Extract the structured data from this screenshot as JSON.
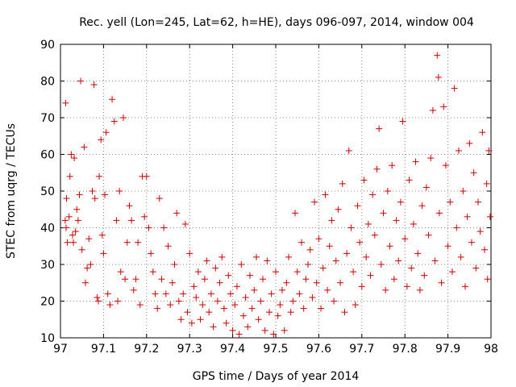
{
  "chart_data": {
    "type": "scatter",
    "title": "Rec. yell (Lon=245, Lat=62, h=HE), days 096-097, 2014, window 004",
    "xlabel": "GPS time / Days of year 2014",
    "ylabel": "STEC from uqrg / TECUs",
    "xlim": [
      97,
      98
    ],
    "ylim": [
      10,
      90
    ],
    "x_ticks": [
      "97",
      "97.1",
      "97.2",
      "97.3",
      "97.4",
      "97.5",
      "97.6",
      "97.7",
      "97.8",
      "97.9",
      "98"
    ],
    "y_ticks": [
      "10",
      "20",
      "30",
      "40",
      "50",
      "60",
      "70",
      "80",
      "90"
    ],
    "grid": true,
    "marker": "plus",
    "color": "#cc0000",
    "series": [
      {
        "points": [
          [
            97.012,
            74
          ],
          [
            97.014,
            48
          ],
          [
            97.011,
            42
          ],
          [
            97.013,
            40
          ],
          [
            97.016,
            36
          ],
          [
            97.02,
            43
          ],
          [
            97.022,
            54
          ],
          [
            97.025,
            60
          ],
          [
            97.028,
            38
          ],
          [
            97.03,
            36
          ],
          [
            97.032,
            59
          ],
          [
            97.035,
            39
          ],
          [
            97.038,
            45
          ],
          [
            97.041,
            42
          ],
          [
            97.044,
            49
          ],
          [
            97.047,
            80
          ],
          [
            97.05,
            34
          ],
          [
            97.055,
            62
          ],
          [
            97.058,
            25
          ],
          [
            97.062,
            29
          ],
          [
            97.066,
            37
          ],
          [
            97.07,
            30
          ],
          [
            97.074,
            50
          ],
          [
            97.078,
            79
          ],
          [
            97.08,
            48
          ],
          [
            97.085,
            21
          ],
          [
            97.088,
            20
          ],
          [
            97.09,
            54
          ],
          [
            97.094,
            64
          ],
          [
            97.097,
            38
          ],
          [
            97.1,
            33
          ],
          [
            97.103,
            49
          ],
          [
            97.106,
            66
          ],
          [
            97.11,
            22
          ],
          [
            97.115,
            19
          ],
          [
            97.12,
            75
          ],
          [
            97.125,
            69
          ],
          [
            97.13,
            42
          ],
          [
            97.133,
            20
          ],
          [
            97.137,
            50
          ],
          [
            97.14,
            28
          ],
          [
            97.146,
            70
          ],
          [
            97.15,
            26
          ],
          [
            97.155,
            36
          ],
          [
            97.16,
            46
          ],
          [
            97.165,
            42
          ],
          [
            97.17,
            23
          ],
          [
            97.175,
            26
          ],
          [
            97.18,
            36
          ],
          [
            97.185,
            19
          ],
          [
            97.19,
            54
          ],
          [
            97.195,
            43
          ],
          [
            97.2,
            54
          ],
          [
            97.205,
            40
          ],
          [
            97.21,
            33
          ],
          [
            97.215,
            28
          ],
          [
            97.22,
            22
          ],
          [
            97.225,
            18
          ],
          [
            97.23,
            48
          ],
          [
            97.235,
            26
          ],
          [
            97.24,
            40
          ],
          [
            97.245,
            22
          ],
          [
            97.25,
            35
          ],
          [
            97.255,
            19
          ],
          [
            97.26,
            25
          ],
          [
            97.265,
            30
          ],
          [
            97.27,
            44
          ],
          [
            97.275,
            20
          ],
          [
            97.28,
            15
          ],
          [
            97.285,
            22
          ],
          [
            97.29,
            41
          ],
          [
            97.295,
            17
          ],
          [
            97.3,
            33
          ],
          [
            97.305,
            14
          ],
          [
            97.31,
            24
          ],
          [
            97.315,
            21
          ],
          [
            97.32,
            28
          ],
          [
            97.325,
            15
          ],
          [
            97.33,
            19
          ],
          [
            97.335,
            26
          ],
          [
            97.34,
            31
          ],
          [
            97.345,
            17
          ],
          [
            97.35,
            22
          ],
          [
            97.355,
            13
          ],
          [
            97.36,
            29
          ],
          [
            97.365,
            20
          ],
          [
            97.37,
            25
          ],
          [
            97.375,
            32
          ],
          [
            97.38,
            18
          ],
          [
            97.385,
            14
          ],
          [
            97.39,
            27
          ],
          [
            97.395,
            22
          ],
          [
            97.4,
            12
          ],
          [
            97.405,
            19
          ],
          [
            97.41,
            24
          ],
          [
            97.415,
            11
          ],
          [
            97.42,
            30
          ],
          [
            97.425,
            16
          ],
          [
            97.43,
            21
          ],
          [
            97.435,
            13
          ],
          [
            97.44,
            27
          ],
          [
            97.445,
            18
          ],
          [
            97.45,
            23
          ],
          [
            97.455,
            32
          ],
          [
            97.46,
            15
          ],
          [
            97.465,
            20
          ],
          [
            97.47,
            26
          ],
          [
            97.475,
            12
          ],
          [
            97.48,
            31
          ],
          [
            97.485,
            17
          ],
          [
            97.49,
            22
          ],
          [
            97.495,
            11
          ],
          [
            97.5,
            28
          ],
          [
            97.505,
            16
          ],
          [
            97.51,
            19
          ],
          [
            97.515,
            23
          ],
          [
            97.52,
            12
          ],
          [
            97.525,
            25
          ],
          [
            97.53,
            32
          ],
          [
            97.535,
            17
          ],
          [
            97.54,
            20
          ],
          [
            97.545,
            44
          ],
          [
            97.55,
            28
          ],
          [
            97.555,
            22
          ],
          [
            97.56,
            36
          ],
          [
            97.565,
            18
          ],
          [
            97.57,
            26
          ],
          [
            97.575,
            30
          ],
          [
            97.58,
            34
          ],
          [
            97.585,
            21
          ],
          [
            97.59,
            47
          ],
          [
            97.595,
            25
          ],
          [
            97.6,
            37
          ],
          [
            97.605,
            18
          ],
          [
            97.61,
            29
          ],
          [
            97.615,
            49
          ],
          [
            97.62,
            23
          ],
          [
            97.625,
            35
          ],
          [
            97.63,
            42
          ],
          [
            97.635,
            20
          ],
          [
            97.64,
            31
          ],
          [
            97.645,
            45
          ],
          [
            97.65,
            25
          ],
          [
            97.655,
            52
          ],
          [
            97.66,
            17
          ],
          [
            97.665,
            33
          ],
          [
            97.67,
            61
          ],
          [
            97.675,
            40
          ],
          [
            97.68,
            28
          ],
          [
            97.685,
            19
          ],
          [
            97.69,
            46
          ],
          [
            97.695,
            36
          ],
          [
            97.7,
            24
          ],
          [
            97.705,
            53
          ],
          [
            97.71,
            32
          ],
          [
            97.715,
            41
          ],
          [
            97.72,
            27
          ],
          [
            97.725,
            49
          ],
          [
            97.73,
            38
          ],
          [
            97.735,
            56
          ],
          [
            97.74,
            67
          ],
          [
            97.745,
            30
          ],
          [
            97.75,
            44
          ],
          [
            97.755,
            23
          ],
          [
            97.76,
            50
          ],
          [
            97.765,
            35
          ],
          [
            97.77,
            57
          ],
          [
            97.775,
            26
          ],
          [
            97.78,
            42
          ],
          [
            97.785,
            31
          ],
          [
            97.79,
            47
          ],
          [
            97.795,
            69
          ],
          [
            97.8,
            37
          ],
          [
            97.805,
            24
          ],
          [
            97.81,
            53
          ],
          [
            97.815,
            29
          ],
          [
            97.82,
            41
          ],
          [
            97.825,
            58
          ],
          [
            97.83,
            33
          ],
          [
            97.835,
            23
          ],
          [
            97.84,
            46
          ],
          [
            97.845,
            27
          ],
          [
            97.85,
            51
          ],
          [
            97.855,
            38
          ],
          [
            97.86,
            59
          ],
          [
            97.865,
            72
          ],
          [
            97.87,
            31
          ],
          [
            97.875,
            87
          ],
          [
            97.878,
            81
          ],
          [
            97.88,
            44
          ],
          [
            97.885,
            25
          ],
          [
            97.89,
            73
          ],
          [
            97.895,
            57
          ],
          [
            97.9,
            35
          ],
          [
            97.905,
            47
          ],
          [
            97.91,
            28
          ],
          [
            97.915,
            78
          ],
          [
            97.92,
            40
          ],
          [
            97.925,
            61
          ],
          [
            97.93,
            32
          ],
          [
            97.935,
            50
          ],
          [
            97.94,
            24
          ],
          [
            97.945,
            43
          ],
          [
            97.95,
            63
          ],
          [
            97.955,
            36
          ],
          [
            97.96,
            55
          ],
          [
            97.965,
            29
          ],
          [
            97.97,
            47
          ],
          [
            97.975,
            39
          ],
          [
            97.98,
            66
          ],
          [
            97.985,
            34
          ],
          [
            97.99,
            52
          ],
          [
            97.992,
            26
          ],
          [
            97.995,
            61
          ],
          [
            97.998,
            43
          ]
        ]
      }
    ]
  }
}
